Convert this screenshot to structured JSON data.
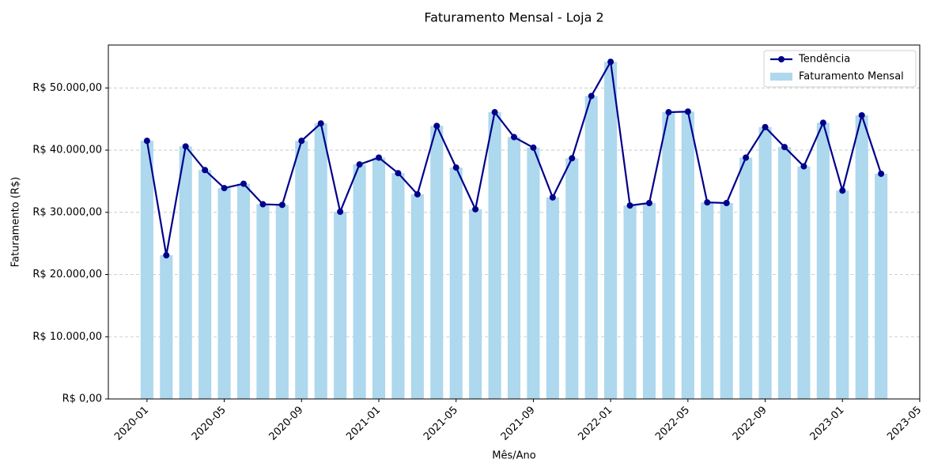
{
  "chart_data": {
    "type": "bar",
    "title": "Faturamento Mensal - Loja 2",
    "x_label": "Mês/Ano",
    "y_label": "Faturamento (R$)",
    "x": [
      "2020-01",
      "2020-02",
      "2020-03",
      "2020-04",
      "2020-05",
      "2020-06",
      "2020-07",
      "2020-08",
      "2020-09",
      "2020-10",
      "2020-11",
      "2020-12",
      "2021-01",
      "2021-02",
      "2021-03",
      "2021-04",
      "2021-05",
      "2021-06",
      "2021-07",
      "2021-08",
      "2021-09",
      "2021-10",
      "2021-11",
      "2021-12",
      "2022-01",
      "2022-02",
      "2022-03",
      "2022-04",
      "2022-05",
      "2022-06",
      "2022-07",
      "2022-08",
      "2022-09",
      "2022-10",
      "2022-11",
      "2022-12",
      "2023-01",
      "2023-02",
      "2023-03"
    ],
    "series": [
      {
        "name": "Tendência",
        "type": "line",
        "color": "#00008b",
        "values": [
          41500,
          23100,
          40600,
          36800,
          33900,
          34600,
          31300,
          31200,
          41500,
          44300,
          30100,
          37700,
          38800,
          36300,
          32900,
          43900,
          37200,
          30500,
          46100,
          42100,
          40400,
          32400,
          38700,
          48700,
          54200,
          31100,
          31500,
          46100,
          46200,
          31600,
          31500,
          38800,
          43700,
          40500,
          37400,
          44400,
          33500,
          45600,
          36200
        ]
      },
      {
        "name": "Faturamento Mensal",
        "type": "bar",
        "color": "#add8ee",
        "values": [
          41500,
          23100,
          40600,
          36800,
          33900,
          34600,
          31300,
          31200,
          41500,
          44300,
          30100,
          37700,
          38800,
          36300,
          32900,
          43900,
          37200,
          30500,
          46100,
          42100,
          40400,
          32400,
          38700,
          48700,
          54200,
          31100,
          31500,
          46100,
          46200,
          31600,
          31500,
          38800,
          43700,
          40500,
          37400,
          44400,
          33500,
          45600,
          36200
        ]
      }
    ],
    "xlim": [
      "2019-11",
      "2023-05"
    ],
    "xticks": [
      "2020-01",
      "2020-05",
      "2020-09",
      "2021-01",
      "2021-05",
      "2021-09",
      "2022-01",
      "2022-05",
      "2022-09",
      "2023-01",
      "2023-05"
    ],
    "ylim": [
      0,
      56900
    ],
    "yticks": [
      {
        "value": 0,
        "label": "R$ 0,00"
      },
      {
        "value": 10000,
        "label": "R$ 10.000,00"
      },
      {
        "value": 20000,
        "label": "R$ 20.000,00"
      },
      {
        "value": 30000,
        "label": "R$ 30.000,00"
      },
      {
        "value": 40000,
        "label": "R$ 40.000,00"
      },
      {
        "value": 50000,
        "label": "R$ 50.000,00"
      }
    ],
    "grid": true,
    "legend": "upper right"
  }
}
